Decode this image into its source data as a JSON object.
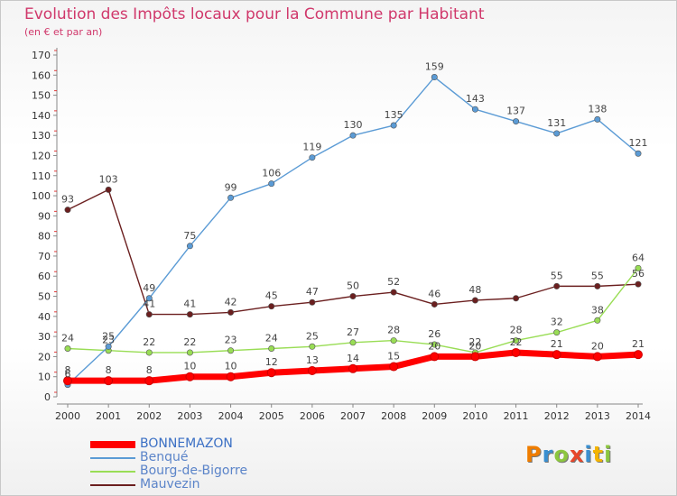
{
  "title": "Evolution des Impôts locaux pour la Commune par Habitant",
  "subtitle": "(en € et par an)",
  "logo": {
    "text": "Proxiti",
    "colors": [
      "#ef7d00",
      "#3a8fd0",
      "#8cc63f",
      "#e7462a",
      "#3a8fd0",
      "#f4b400",
      "#8cc63f"
    ]
  },
  "chart_data": {
    "type": "line",
    "x": [
      2000,
      2001,
      2002,
      2003,
      2004,
      2005,
      2006,
      2007,
      2008,
      2009,
      2010,
      2011,
      2012,
      2013,
      2014
    ],
    "ylim": [
      0,
      170
    ],
    "yticks": [
      0,
      10,
      20,
      30,
      40,
      50,
      60,
      70,
      80,
      90,
      100,
      110,
      120,
      130,
      140,
      150,
      160,
      170
    ],
    "grid": false,
    "series": [
      {
        "name": "BONNEMAZON",
        "color": "#ff0000",
        "values": [
          8,
          8,
          8,
          10,
          10,
          12,
          13,
          14,
          15,
          20,
          20,
          22,
          21,
          20,
          21
        ],
        "labels": [
          "8",
          "8",
          "8",
          "10",
          "10",
          "12",
          "13",
          "14",
          "15",
          "",
          "",
          "",
          "21",
          "20",
          "21"
        ]
      },
      {
        "name": "Benqué",
        "color": "#5b9bd5",
        "values": [
          6,
          25,
          49,
          75,
          99,
          106,
          119,
          130,
          135,
          159,
          143,
          137,
          131,
          138,
          121
        ],
        "labels": [
          "6",
          "25",
          "49",
          "75",
          "99",
          "106",
          "119",
          "130",
          "135",
          "159",
          "143",
          "137",
          "131",
          "138",
          "121"
        ]
      },
      {
        "name": "Bourg-de-Bigorre",
        "color": "#99dd55",
        "values": [
          24,
          23,
          22,
          22,
          23,
          24,
          25,
          27,
          28,
          26,
          22,
          28,
          32,
          38,
          64
        ],
        "labels": [
          "24",
          "23",
          "22",
          "22",
          "23",
          "24",
          "25",
          "27",
          "28",
          "26",
          "22",
          "28",
          "32",
          "38",
          "64"
        ]
      },
      {
        "name": "Mauvezin",
        "color": "#6b1f1f",
        "values": [
          93,
          103,
          41,
          41,
          42,
          45,
          47,
          50,
          52,
          46,
          48,
          49,
          55,
          55,
          56
        ],
        "labels": [
          "93",
          "103",
          "41",
          "41",
          "42",
          "45",
          "47",
          "50",
          "52",
          "46",
          "48",
          "",
          "55",
          "55",
          "56"
        ]
      }
    ],
    "extra_labels": [
      {
        "text": "20",
        "x": 2009,
        "y": 20
      },
      {
        "text": "20",
        "x": 2010,
        "y": 20
      },
      {
        "text": "22",
        "x": 2011,
        "y": 22
      }
    ]
  }
}
